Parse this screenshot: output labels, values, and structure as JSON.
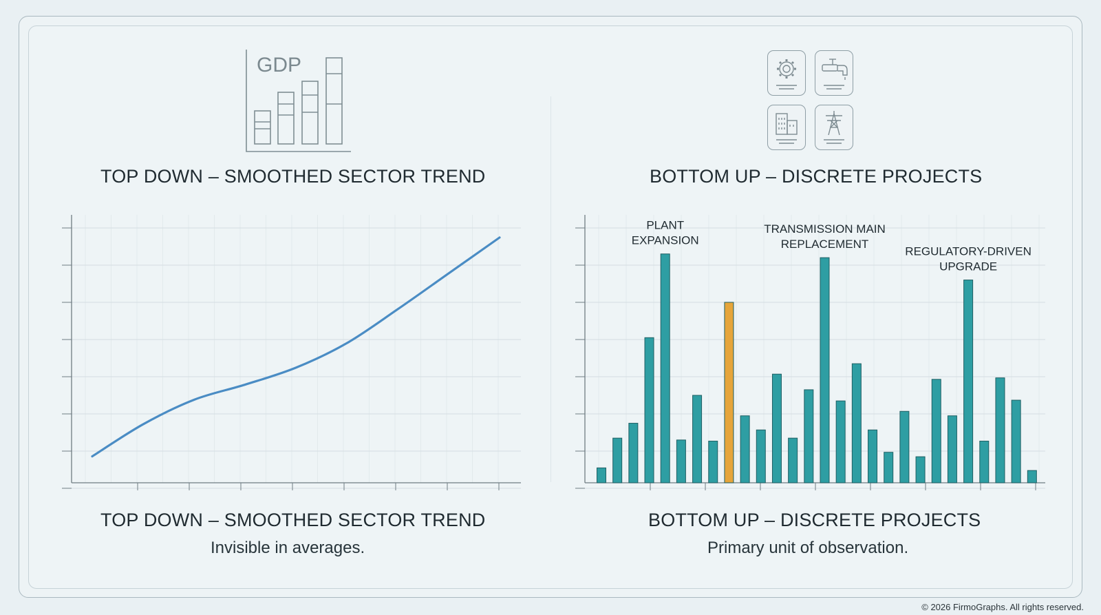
{
  "left_panel": {
    "icon_label": "GDP",
    "top_title": "TOP DOWN – SMOOTHED SECTOR TREND",
    "bottom_title": "TOP DOWN – SMOOTHED SECTOR TREND",
    "caption": "Invisible in averages."
  },
  "right_panel": {
    "icons": [
      "gear-icon",
      "faucet-icon",
      "building-icon",
      "power-tower-icon"
    ],
    "top_title": "BOTTOM UP – DISCRETE PROJECTS",
    "bottom_title": "BOTTOM UP – DISCRETE PROJECTS",
    "caption": "Primary unit of observation."
  },
  "footer": {
    "copyright": "© 2026 FirmoGraphs. All rights reserved."
  },
  "colors": {
    "line": "#4a8cc4",
    "bar": "#2e9ea3",
    "bar_highlight": "#e6a53a",
    "grid": "#d4dde1",
    "axis": "#6f7c82"
  },
  "chart_data": [
    {
      "type": "line",
      "title": "TOP DOWN – SMOOTHED SECTOR TREND",
      "xlabel": "",
      "ylabel": "",
      "x": [
        0,
        1,
        2,
        3,
        4,
        5,
        6,
        7,
        8
      ],
      "values": [
        1.0,
        1.85,
        2.5,
        2.9,
        3.35,
        4.0,
        4.9,
        5.85,
        6.8
      ],
      "xlim": [
        0,
        8
      ],
      "ylim": [
        0.3,
        7.4
      ],
      "grid": true,
      "legend": "none"
    },
    {
      "type": "bar",
      "title": "BOTTOM UP – DISCRETE PROJECTS",
      "xlabel": "",
      "ylabel": "",
      "values": [
        0.4,
        1.2,
        1.6,
        3.9,
        6.15,
        1.15,
        2.35,
        1.12,
        4.85,
        1.8,
        1.42,
        2.92,
        1.2,
        2.5,
        6.05,
        2.2,
        3.2,
        1.42,
        0.82,
        1.92,
        0.7,
        2.78,
        1.8,
        5.45,
        1.12,
        2.82,
        2.22,
        0.33
      ],
      "highlight_index": 8,
      "ylim": [
        0,
        7.2
      ],
      "annotations": [
        {
          "bar_index": 4,
          "lines": [
            "PLANT",
            "EXPANSION"
          ]
        },
        {
          "bar_index": 14,
          "lines": [
            "TRANSMISSION MAIN",
            "REPLACEMENT"
          ]
        },
        {
          "bar_index": 23,
          "lines": [
            "REGULATORY-DRIVEN",
            "UPGRADE"
          ]
        }
      ],
      "grid": true,
      "legend": "none"
    }
  ]
}
